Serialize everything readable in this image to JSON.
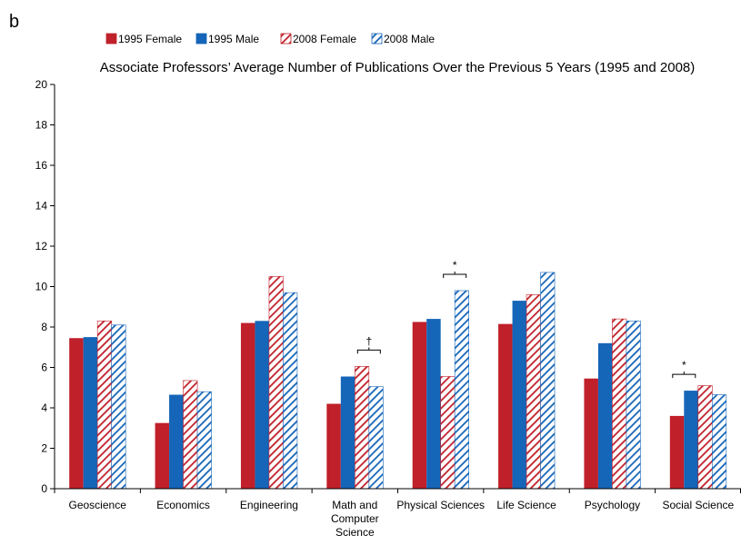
{
  "panel_label": "b",
  "chart_data": {
    "type": "bar",
    "title": "Associate Professors’ Average Number of Publications Over the Previous 5 Years (1995 and 2008)",
    "xlabel": "",
    "ylabel": "",
    "ylim": [
      0,
      20
    ],
    "yticks": [
      0,
      2,
      4,
      6,
      8,
      10,
      12,
      14,
      16,
      18,
      20
    ],
    "grid": false,
    "legend_position": "top-left",
    "categories": [
      [
        "Geoscience"
      ],
      [
        "Economics"
      ],
      [
        "Engineering"
      ],
      [
        "Math and",
        "Computer",
        "Science"
      ],
      [
        "Physical Sciences"
      ],
      [
        "Life Science"
      ],
      [
        "Psychology"
      ],
      [
        "Social Science"
      ]
    ],
    "series": [
      {
        "name": "1995 Female",
        "color": "#c0202a",
        "pattern": "solid",
        "values": [
          7.45,
          3.25,
          8.2,
          4.2,
          8.25,
          8.15,
          5.45,
          3.6
        ]
      },
      {
        "name": "1995 Male",
        "color": "#1565b8",
        "pattern": "solid",
        "values": [
          7.5,
          4.65,
          8.3,
          5.55,
          8.4,
          9.3,
          7.2,
          4.85
        ]
      },
      {
        "name": "2008 Female",
        "color": "#c0202a",
        "pattern": "hatched",
        "values": [
          8.3,
          5.35,
          10.5,
          6.05,
          5.55,
          9.6,
          8.4,
          5.1
        ]
      },
      {
        "name": "2008 Male",
        "color": "#1565b8",
        "pattern": "hatched",
        "values": [
          8.1,
          4.8,
          9.7,
          5.05,
          9.8,
          10.7,
          8.3,
          4.65
        ]
      }
    ],
    "annotations": [
      {
        "category_index": 3,
        "from_series": 2,
        "to_series": 3,
        "symbol": "†"
      },
      {
        "category_index": 4,
        "from_series": 2,
        "to_series": 3,
        "symbol": "*"
      },
      {
        "category_index": 7,
        "from_series": 0,
        "to_series": 1,
        "symbol": "*"
      }
    ]
  }
}
